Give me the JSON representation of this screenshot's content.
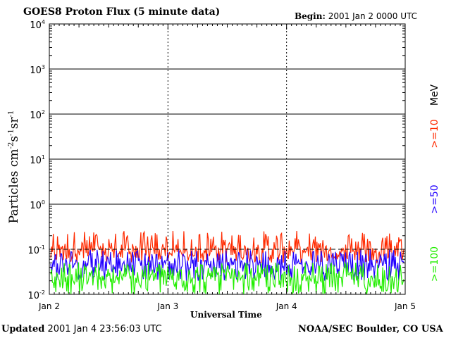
{
  "header": {
    "title": "GOES8 Proton Flux (5 minute data)",
    "begin_label": "Begin:",
    "begin_value": "2001 Jan 2 0000 UTC"
  },
  "footer": {
    "updated_label": "Updated",
    "updated_value": "2001 Jan  4 23:56:03 UTC",
    "org": "NOAA/SEC Boulder, CO USA"
  },
  "chart_data": {
    "type": "line",
    "title": "GOES8 Proton Flux (5 minute data)",
    "xlabel": "Universal Time",
    "ylabel": "Particles cm⁻²s⁻¹sr⁻¹",
    "yscale": "log",
    "ylim": [
      0.01,
      10000
    ],
    "yticks": [
      {
        "base": "10",
        "exp": "4"
      },
      {
        "base": "10",
        "exp": "3"
      },
      {
        "base": "10",
        "exp": "2"
      },
      {
        "base": "10",
        "exp": "1"
      },
      {
        "base": "10",
        "exp": "0"
      },
      {
        "base": "10",
        "exp": "-1"
      },
      {
        "base": "10",
        "exp": "-2"
      }
    ],
    "xticks": [
      "Jan 2",
      "Jan 3",
      "Jan 4",
      "Jan 5"
    ],
    "xlim": [
      "2001-01-02 00:00",
      "2001-01-05 00:00"
    ],
    "grid": true,
    "legend_unit": "MeV",
    "series": [
      {
        "name": ">=10",
        "color": "#ff2a00",
        "typical": 0.1,
        "range": [
          0.05,
          0.45
        ]
      },
      {
        "name": ">=50",
        "color": "#2200ff",
        "typical": 0.05,
        "range": [
          0.02,
          0.15
        ]
      },
      {
        "name": ">=100",
        "color": "#22ee00",
        "typical": 0.025,
        "range": [
          0.01,
          0.08
        ]
      }
    ]
  }
}
